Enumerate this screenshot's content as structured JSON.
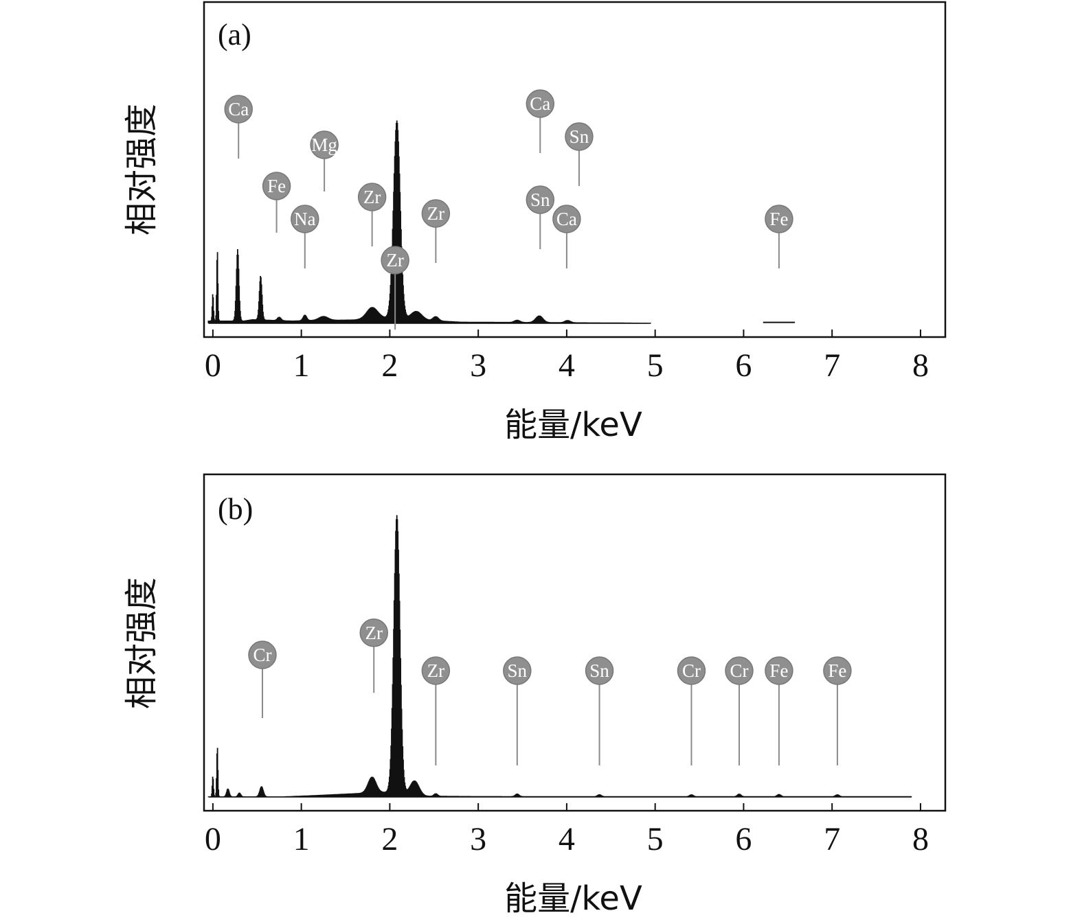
{
  "chart_data": [
    {
      "type": "line",
      "panel_label": "(a)",
      "xlabel": "能量/keV",
      "ylabel": "相对强度",
      "xlim": [
        -0.1,
        8.28
      ],
      "ylim": [
        0,
        100
      ],
      "xticks": [
        "0",
        "1",
        "2",
        "3",
        "4",
        "5",
        "6",
        "7",
        "8"
      ],
      "series": [
        {
          "name": "spectrum-a",
          "peaks": [
            {
              "center": 0.0,
              "height": 10,
              "width": 0.007
            },
            {
              "center": 0.05,
              "height": 26,
              "width": 0.007
            },
            {
              "center": 0.28,
              "height": 26,
              "width": 0.015
            },
            {
              "center": 0.54,
              "height": 16,
              "width": 0.015
            },
            {
              "center": 0.75,
              "height": 1.2,
              "width": 0.02
            },
            {
              "center": 1.04,
              "height": 2.0,
              "width": 0.02
            },
            {
              "center": 1.25,
              "height": 1.4,
              "width": 0.05
            },
            {
              "center": 1.8,
              "height": 4.0,
              "width": 0.06
            },
            {
              "center": 2.08,
              "height": 72,
              "width": 0.038
            },
            {
              "center": 2.3,
              "height": 3.0,
              "width": 0.06
            },
            {
              "center": 2.52,
              "height": 1.5,
              "width": 0.03
            },
            {
              "center": 3.44,
              "height": 0.8,
              "width": 0.03
            },
            {
              "center": 3.69,
              "height": 2.4,
              "width": 0.04
            },
            {
              "center": 4.01,
              "height": 0.8,
              "width": 0.03
            },
            {
              "center": 6.4,
              "height": 0.5,
              "width": 0.03
            }
          ],
          "background": [
            [
              0.35,
              1.0
            ],
            [
              0.45,
              1.5
            ],
            [
              0.9,
              1.0
            ],
            [
              1.1,
              1.2
            ],
            [
              1.6,
              1.4
            ],
            [
              1.9,
              2.2
            ],
            [
              2.8,
              0.6
            ],
            [
              4.6,
              0.3
            ],
            [
              4.95,
              0.2
            ]
          ],
          "range": [
            -0.05,
            4.95
          ],
          "extra_segments": [
            [
              6.22,
              6.58,
              0.35
            ]
          ]
        }
      ],
      "annotations": [
        {
          "label": "Ca",
          "x": 0.29,
          "level": 78,
          "line_to": 60
        },
        {
          "label": "Fe",
          "x": 0.72,
          "level": 50,
          "line_to": 33
        },
        {
          "label": "Mg",
          "x": 1.26,
          "level": 65,
          "line_to": 48
        },
        {
          "label": "Na",
          "x": 1.04,
          "level": 38,
          "line_to": 20
        },
        {
          "label": "Zr",
          "x": 1.8,
          "level": 46,
          "line_to": 28
        },
        {
          "label": "Zr",
          "x": 2.06,
          "level": 160,
          "line_to": 145
        },
        {
          "label": "Zr",
          "x": 2.52,
          "level": 40,
          "line_to": 22
        },
        {
          "label": "Ca",
          "x": 3.7,
          "level": 80,
          "line_to": 62
        },
        {
          "label": "Sn",
          "x": 4.14,
          "level": 68,
          "line_to": 50
        },
        {
          "label": "Sn",
          "x": 3.7,
          "level": 45,
          "line_to": 27
        },
        {
          "label": "Ca",
          "x": 4.0,
          "level": 38,
          "line_to": 20
        },
        {
          "label": "Fe",
          "x": 6.4,
          "level": 38,
          "line_to": 20
        }
      ]
    },
    {
      "type": "line",
      "panel_label": "(b)",
      "xlabel": "能量/keV",
      "ylabel": "相对强度",
      "xlim": [
        -0.1,
        8.28
      ],
      "ylim": [
        0,
        100
      ],
      "xticks": [
        "0",
        "1",
        "2",
        "3",
        "4",
        "5",
        "6",
        "7",
        "8"
      ],
      "series": [
        {
          "name": "spectrum-b",
          "peaks": [
            {
              "center": 0.0,
              "height": 6.5,
              "width": 0.007
            },
            {
              "center": 0.05,
              "height": 16,
              "width": 0.007
            },
            {
              "center": 0.17,
              "height": 2.5,
              "width": 0.015
            },
            {
              "center": 0.3,
              "height": 1.2,
              "width": 0.015
            },
            {
              "center": 0.55,
              "height": 3.2,
              "width": 0.02
            },
            {
              "center": 1.8,
              "height": 5.0,
              "width": 0.045
            },
            {
              "center": 2.08,
              "height": 88,
              "width": 0.035
            },
            {
              "center": 2.28,
              "height": 4.5,
              "width": 0.05
            },
            {
              "center": 2.52,
              "height": 0.8,
              "width": 0.02
            },
            {
              "center": 3.44,
              "height": 0.8,
              "width": 0.02
            },
            {
              "center": 4.37,
              "height": 0.6,
              "width": 0.02
            },
            {
              "center": 5.41,
              "height": 0.6,
              "width": 0.02
            },
            {
              "center": 5.95,
              "height": 0.8,
              "width": 0.02
            },
            {
              "center": 6.4,
              "height": 0.7,
              "width": 0.02
            },
            {
              "center": 7.06,
              "height": 0.6,
              "width": 0.02
            }
          ],
          "background": [
            [
              0.8,
              0.2
            ],
            [
              1.15,
              0.6
            ],
            [
              1.6,
              1.2
            ],
            [
              1.95,
              1.6
            ],
            [
              2.4,
              0.4
            ],
            [
              3.0,
              0.3
            ],
            [
              5.0,
              0.25
            ],
            [
              7.9,
              0.25
            ]
          ],
          "range": [
            -0.05,
            7.9
          ]
        }
      ],
      "annotations": [
        {
          "label": "Cr",
          "x": 0.56,
          "level": 45,
          "line_to": 25
        },
        {
          "label": "Zr",
          "x": 1.82,
          "level": 52,
          "line_to": 33
        },
        {
          "label": "Zr",
          "x": 2.06,
          "level": 170,
          "line_to": 148
        },
        {
          "label": "Zr",
          "x": 2.52,
          "level": 40,
          "line_to": 10
        },
        {
          "label": "Sn",
          "x": 3.44,
          "level": 40,
          "line_to": 10
        },
        {
          "label": "Sn",
          "x": 4.37,
          "level": 40,
          "line_to": 10
        },
        {
          "label": "Cr",
          "x": 5.41,
          "level": 40,
          "line_to": 10
        },
        {
          "label": "Cr",
          "x": 5.95,
          "level": 40,
          "line_to": 10
        },
        {
          "label": "Fe",
          "x": 6.4,
          "level": 40,
          "line_to": 10
        },
        {
          "label": "Fe",
          "x": 7.06,
          "level": 40,
          "line_to": 10
        }
      ]
    }
  ],
  "colors": {
    "spectrum": "#111111",
    "frame": "#111111",
    "badge_fill": "#8f8f8f",
    "badge_stroke": "#777777",
    "badge_text": "#ffffff",
    "leader_line": "#8a8a8a"
  }
}
